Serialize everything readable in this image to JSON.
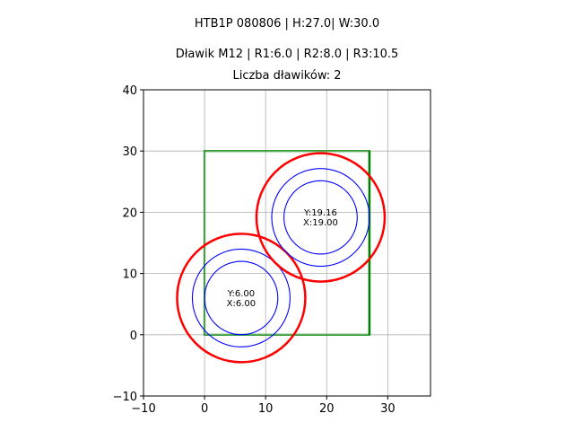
{
  "titles": {
    "line1": "HTB1P 080806 | H:27.0| W:30.0",
    "line2": "Dławik M12 | R1:6.0 | R2:8.0 | R3:10.5",
    "line3": "Liczba dławików: 2"
  },
  "chart_data": {
    "type": "scatter",
    "title": "HTB1P 080806 | H:27.0| W:30.0",
    "subtitle": "Dławik M12 | R1:6.0 | R2:8.0 | R3:10.5 / Liczba dławików: 2",
    "xlabel": "",
    "ylabel": "",
    "xlim": [
      -10,
      37
    ],
    "ylim": [
      -10,
      40
    ],
    "xticks": [
      -10,
      0,
      10,
      20,
      30
    ],
    "yticks": [
      -10,
      0,
      10,
      20,
      30,
      40
    ],
    "grid": true,
    "aspect": "equal",
    "rectangle": {
      "x": 0,
      "y": 0,
      "width": 27,
      "height": 30,
      "color": "#008000"
    },
    "radii": {
      "R1": 6.0,
      "R2": 8.0,
      "R3": 10.5
    },
    "circle_colors": {
      "R1": "#0000ff",
      "R2": "#0000ff",
      "R3": "#ff0000"
    },
    "glands": [
      {
        "x": 6.0,
        "y": 6.0,
        "label_y": "Y:6.00",
        "label_x": "X:6.00"
      },
      {
        "x": 19.0,
        "y": 19.16,
        "label_y": "Y:19.16",
        "label_x": "X:19.00"
      }
    ]
  }
}
